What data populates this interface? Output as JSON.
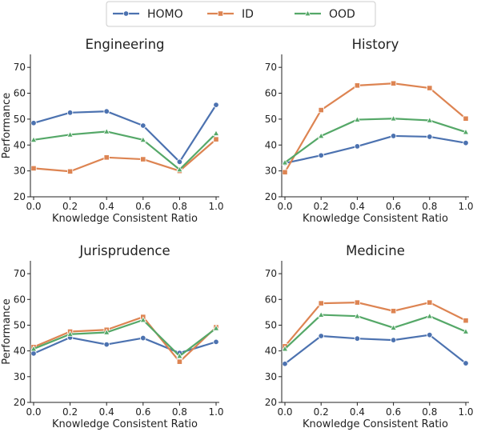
{
  "legend": {
    "entries": [
      {
        "name": "HOMO",
        "color": "#4c72b0",
        "marker": "circle"
      },
      {
        "name": "ID",
        "color": "#dd8452",
        "marker": "square"
      },
      {
        "name": "OOD",
        "color": "#55a868",
        "marker": "triangle"
      }
    ],
    "placement": "top-center"
  },
  "chart_data": [
    {
      "type": "line",
      "title": "Engineering",
      "xlabel": "Knowledge Consistent Ratio",
      "ylabel": "Performance",
      "x": [
        0.0,
        0.2,
        0.4,
        0.6,
        0.8,
        1.0
      ],
      "x_ticks": [
        "0.0",
        "0.2",
        "0.4",
        "0.6",
        "0.8",
        "1.0"
      ],
      "y_ticks": [
        "20",
        "30",
        "40",
        "50",
        "60",
        "70"
      ],
      "ylim": [
        20,
        75
      ],
      "grid": false,
      "series": [
        {
          "name": "HOMO",
          "values": [
            48.5,
            52.5,
            53.0,
            47.5,
            33.5,
            55.5
          ]
        },
        {
          "name": "ID",
          "values": [
            31.0,
            29.8,
            35.2,
            34.5,
            30.0,
            42.2
          ]
        },
        {
          "name": "OOD",
          "values": [
            42.0,
            44.0,
            45.2,
            42.0,
            30.5,
            44.5
          ]
        }
      ]
    },
    {
      "type": "line",
      "title": "History",
      "xlabel": "Knowledge Consistent Ratio",
      "ylabel": "",
      "x": [
        0.0,
        0.2,
        0.4,
        0.6,
        0.8,
        1.0
      ],
      "x_ticks": [
        "0.0",
        "0.2",
        "0.4",
        "0.6",
        "0.8",
        "1.0"
      ],
      "y_ticks": [
        "20",
        "30",
        "40",
        "50",
        "60",
        "70"
      ],
      "ylim": [
        20,
        75
      ],
      "grid": false,
      "series": [
        {
          "name": "HOMO",
          "values": [
            33.0,
            36.0,
            39.5,
            43.5,
            43.2,
            40.8
          ]
        },
        {
          "name": "ID",
          "values": [
            29.5,
            53.5,
            63.0,
            63.8,
            62.0,
            50.2
          ]
        },
        {
          "name": "OOD",
          "values": [
            33.2,
            43.5,
            49.8,
            50.2,
            49.5,
            45.0
          ]
        }
      ]
    },
    {
      "type": "line",
      "title": "Jurisprudence",
      "xlabel": "Knowledge Consistent Ratio",
      "ylabel": "Performance",
      "x": [
        0.0,
        0.2,
        0.4,
        0.6,
        0.8,
        1.0
      ],
      "x_ticks": [
        "0.0",
        "0.2",
        "0.4",
        "0.6",
        "0.8",
        "1.0"
      ],
      "y_ticks": [
        "20",
        "30",
        "40",
        "50",
        "60",
        "70"
      ],
      "ylim": [
        20,
        75
      ],
      "grid": false,
      "series": [
        {
          "name": "HOMO",
          "values": [
            39.0,
            45.2,
            42.5,
            45.0,
            39.2,
            43.5
          ]
        },
        {
          "name": "ID",
          "values": [
            41.5,
            47.5,
            48.2,
            53.2,
            35.8,
            49.2
          ]
        },
        {
          "name": "OOD",
          "values": [
            40.8,
            46.5,
            47.2,
            52.0,
            38.0,
            48.8
          ]
        }
      ]
    },
    {
      "type": "line",
      "title": "Medicine",
      "xlabel": "Knowledge Consistent Ratio",
      "ylabel": "",
      "x": [
        0.0,
        0.2,
        0.4,
        0.6,
        0.8,
        1.0
      ],
      "x_ticks": [
        "0.0",
        "0.2",
        "0.4",
        "0.6",
        "0.8",
        "1.0"
      ],
      "y_ticks": [
        "20",
        "30",
        "40",
        "50",
        "60",
        "70"
      ],
      "ylim": [
        20,
        75
      ],
      "grid": false,
      "series": [
        {
          "name": "HOMO",
          "values": [
            35.0,
            45.8,
            44.8,
            44.2,
            46.2,
            35.2
          ]
        },
        {
          "name": "ID",
          "values": [
            41.8,
            58.5,
            58.8,
            55.5,
            58.8,
            51.8
          ]
        },
        {
          "name": "OOD",
          "values": [
            40.8,
            54.0,
            53.5,
            49.0,
            53.5,
            47.5
          ]
        }
      ]
    }
  ]
}
